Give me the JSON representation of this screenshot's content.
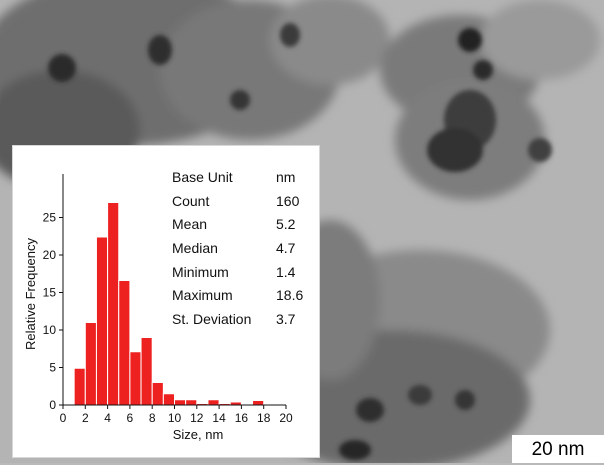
{
  "stats": [
    {
      "label": "Base Unit",
      "value": "nm"
    },
    {
      "label": "Count",
      "value": "160"
    },
    {
      "label": "Mean",
      "value": "5.2"
    },
    {
      "label": "Median",
      "value": "4.7"
    },
    {
      "label": "Minimum",
      "value": "1.4"
    },
    {
      "label": "Maximum",
      "value": "18.6"
    },
    {
      "label": "St. Deviation",
      "value": "3.7"
    }
  ],
  "scale_bar": {
    "label": "20 nm"
  },
  "colors": {
    "bars": "#ee2121"
  },
  "chart_data": {
    "type": "bar",
    "xlabel": "Size, nm",
    "ylabel": "Relative Frequency",
    "xlim": [
      0,
      20
    ],
    "ylim": [
      0,
      30
    ],
    "xticks": [
      0,
      2,
      4,
      6,
      8,
      10,
      12,
      14,
      16,
      18,
      20
    ],
    "yticks": [
      0,
      5,
      10,
      15,
      20,
      25
    ],
    "bin_width": 1,
    "x": [
      1,
      2,
      3,
      4,
      5,
      6,
      7,
      8,
      9,
      10,
      11,
      12,
      13,
      14,
      15,
      16,
      17,
      18,
      19
    ],
    "values": [
      4.9,
      11.0,
      22.4,
      27.0,
      16.6,
      7.1,
      9.0,
      3.0,
      1.5,
      0.7,
      0.7,
      0.2,
      0.7,
      0.2,
      0.4,
      0.1,
      0.6,
      0.1,
      0.1
    ],
    "grid": false
  }
}
